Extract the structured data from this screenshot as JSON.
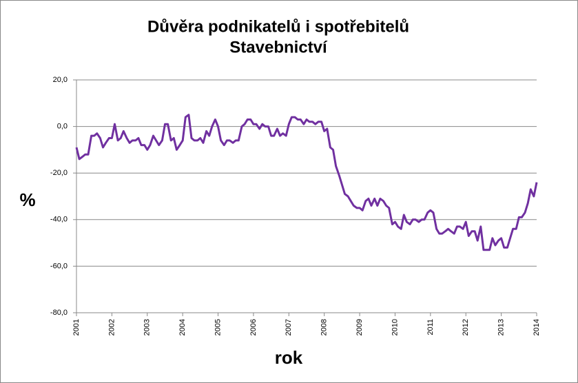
{
  "chart_data": {
    "type": "line",
    "title": "Důvěra podnikatelů i spotřebitelů",
    "subtitle": "Stavebnictví",
    "y_label": "%",
    "x_label": "rok",
    "x": [
      2001,
      2001.08,
      2001.17,
      2001.25,
      2001.33,
      2001.42,
      2001.5,
      2001.58,
      2001.67,
      2001.75,
      2001.83,
      2001.92,
      2002,
      2002.08,
      2002.17,
      2002.25,
      2002.33,
      2002.42,
      2002.5,
      2002.58,
      2002.67,
      2002.75,
      2002.83,
      2002.92,
      2003,
      2003.08,
      2003.17,
      2003.25,
      2003.33,
      2003.42,
      2003.5,
      2003.58,
      2003.67,
      2003.75,
      2003.83,
      2003.92,
      2004,
      2004.08,
      2004.17,
      2004.25,
      2004.33,
      2004.42,
      2004.5,
      2004.58,
      2004.67,
      2004.75,
      2004.83,
      2004.92,
      2005,
      2005.08,
      2005.17,
      2005.25,
      2005.33,
      2005.42,
      2005.5,
      2005.58,
      2005.67,
      2005.75,
      2005.83,
      2005.92,
      2006,
      2006.08,
      2006.17,
      2006.25,
      2006.33,
      2006.42,
      2006.5,
      2006.58,
      2006.67,
      2006.75,
      2006.83,
      2006.92,
      2007,
      2007.08,
      2007.17,
      2007.25,
      2007.33,
      2007.42,
      2007.5,
      2007.58,
      2007.67,
      2007.75,
      2007.83,
      2007.92,
      2008,
      2008.08,
      2008.17,
      2008.25,
      2008.33,
      2008.42,
      2008.5,
      2008.58,
      2008.67,
      2008.75,
      2008.83,
      2008.92,
      2009,
      2009.08,
      2009.17,
      2009.25,
      2009.33,
      2009.42,
      2009.5,
      2009.58,
      2009.67,
      2009.75,
      2009.83,
      2009.92,
      2010,
      2010.08,
      2010.17,
      2010.25,
      2010.33,
      2010.42,
      2010.5,
      2010.58,
      2010.67,
      2010.75,
      2010.83,
      2010.92,
      2011,
      2011.08,
      2011.17,
      2011.25,
      2011.33,
      2011.42,
      2011.5,
      2011.58,
      2011.67,
      2011.75,
      2011.83,
      2011.92,
      2012,
      2012.08,
      2012.17,
      2012.25,
      2012.33,
      2012.42,
      2012.5,
      2012.58,
      2012.67,
      2012.75,
      2012.83,
      2012.92,
      2013,
      2013.08,
      2013.17,
      2013.25,
      2013.33,
      2013.42,
      2013.5,
      2013.58,
      2013.67,
      2013.75,
      2013.83,
      2013.92,
      2014
    ],
    "series": [
      {
        "color": "#7030a0",
        "values": [
          -9,
          -14,
          -13,
          -12,
          -12,
          -4,
          -4,
          -3,
          -5,
          -9,
          -7,
          -5,
          -5,
          1,
          -6,
          -5,
          -2,
          -5,
          -7,
          -6,
          -6,
          -5,
          -8,
          -8,
          -10,
          -8,
          -4,
          -6,
          -8,
          -6,
          1,
          1,
          -6,
          -5,
          -10,
          -8,
          -6,
          4,
          5,
          -5,
          -6,
          -6,
          -5,
          -7,
          -2,
          -4,
          0,
          3,
          0,
          -6,
          -8,
          -6,
          -6,
          -7,
          -6,
          -6,
          0,
          1,
          3,
          3,
          1,
          1,
          -1,
          1,
          0,
          0,
          -4,
          -4,
          -1,
          -4,
          -3,
          -4,
          1,
          4,
          4,
          3,
          3,
          1,
          3,
          2,
          2,
          1,
          2,
          2,
          -2,
          -1,
          -9,
          -10,
          -17,
          -21,
          -25,
          -29,
          -30,
          -32,
          -34,
          -35,
          -35,
          -36,
          -32,
          -31,
          -34,
          -31,
          -34,
          -31,
          -32,
          -34,
          -35,
          -42,
          -41,
          -43,
          -44,
          -38,
          -41,
          -42,
          -40,
          -40,
          -41,
          -40,
          -40,
          -37,
          -36,
          -37,
          -44,
          -46,
          -46,
          -45,
          -44,
          -45,
          -46,
          -43,
          -43,
          -44,
          -41,
          -47,
          -45,
          -45,
          -49,
          -43,
          -53,
          -53,
          -53,
          -48,
          -51,
          -49,
          -48,
          -52,
          -52,
          -48,
          -44,
          -44,
          -39,
          -39,
          -37,
          -33,
          -27,
          -30,
          -24
        ]
      }
    ],
    "xlim": [
      2001,
      2014
    ],
    "xticks": [
      2001,
      2002,
      2003,
      2004,
      2005,
      2006,
      2007,
      2008,
      2009,
      2010,
      2011,
      2012,
      2013,
      2014
    ],
    "ylim": [
      -80,
      20
    ],
    "yticks": [
      {
        "value": -80,
        "label": "-80,0"
      },
      {
        "value": -60,
        "label": "-60,0"
      },
      {
        "value": -40,
        "label": "-40,0"
      },
      {
        "value": -20,
        "label": "-20,0"
      },
      {
        "value": 0,
        "label": "0,0"
      },
      {
        "value": 20,
        "label": "20,0"
      }
    ],
    "grid": true
  }
}
